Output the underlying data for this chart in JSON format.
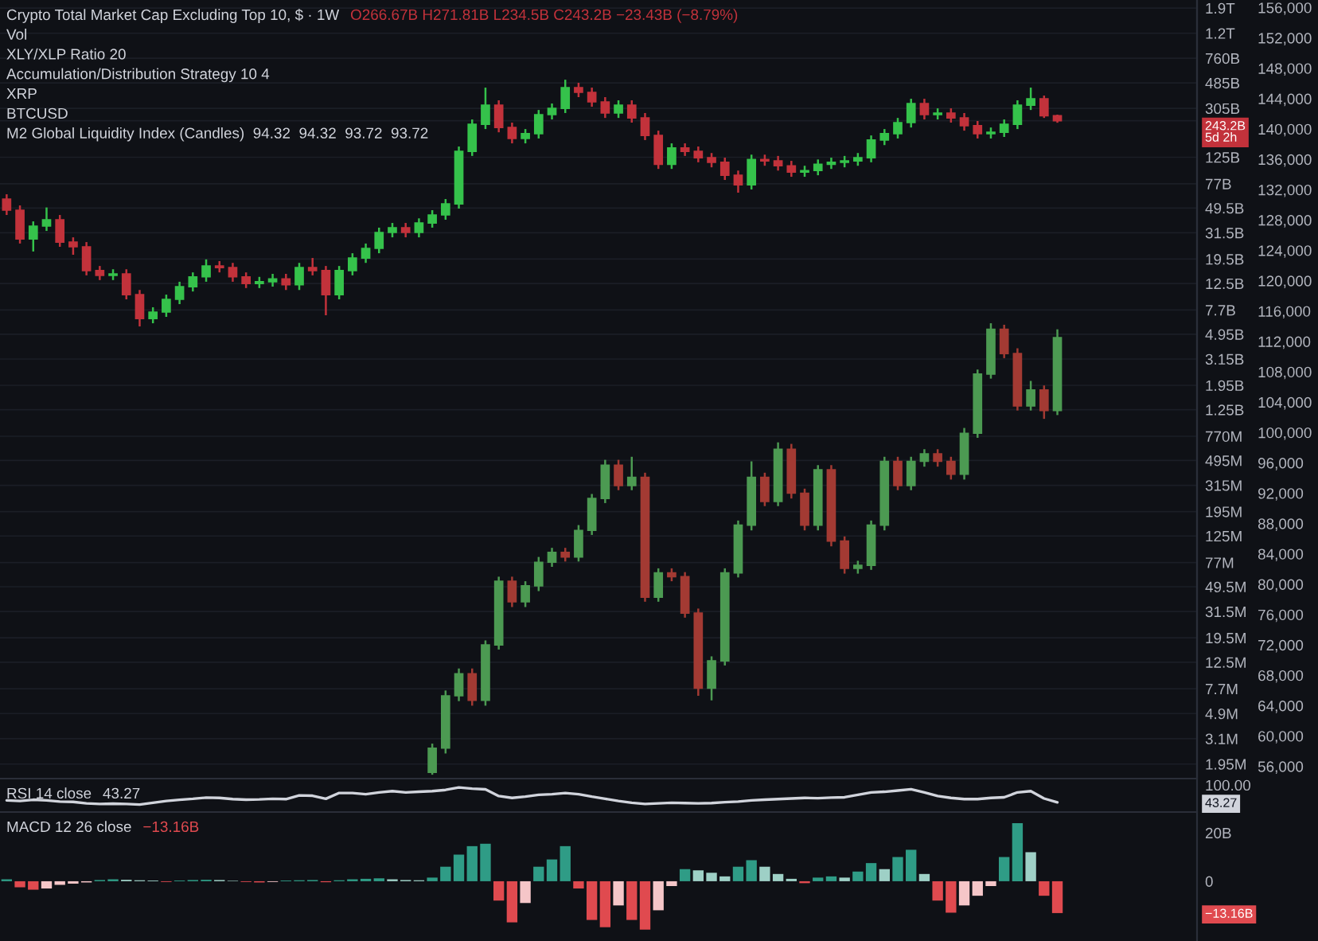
{
  "chart_data": [
    {
      "type": "candlestick",
      "title": "Crypto Total Market Cap Excluding Top 10, $ · 1W",
      "subtitle": "O266.67B H271.81B L234.5B C243.2B −23.43B (−8.79%)",
      "annotations": [
        "Vol",
        "XLY/XLP Ratio 20",
        "Accumulation/Distribution Strategy 10 4",
        "XRP",
        "BTCUSD",
        "M2 Global Liquidity Index (Candles)  94.32  94.32  93.72  93.72"
      ],
      "categories": [
        null,
        null,
        null,
        null,
        null,
        null,
        null,
        null,
        null,
        null,
        null,
        null,
        null,
        null,
        null,
        null,
        null,
        null,
        null,
        null,
        null,
        null,
        null,
        null,
        null,
        null,
        null,
        null,
        null,
        null,
        null,
        null,
        null,
        null,
        null,
        null,
        null,
        null,
        null,
        null,
        null,
        null,
        null,
        null,
        null,
        null,
        null,
        null,
        null,
        null,
        null,
        null,
        null,
        null,
        null,
        null,
        null,
        null,
        null,
        null,
        null,
        null,
        null,
        null,
        null,
        null,
        null,
        null,
        null,
        null,
        null,
        null,
        null,
        null,
        null,
        null,
        null,
        null,
        null,
        null,
        null,
        null,
        null,
        null,
        null,
        null,
        null,
        null,
        null,
        null
      ],
      "log": "y",
      "ylim": [
        1540000,
        2200000000000
      ],
      "yticks": [
        {
          "value": 1900000000000.0,
          "label": "1.9T"
        },
        {
          "value": 1200000000000.0,
          "label": "1.2T"
        },
        {
          "value": 760000000000.0,
          "label": "760B"
        },
        {
          "value": 485000000000.0,
          "label": "485B"
        },
        {
          "value": 305000000000.0,
          "label": "305B"
        },
        {
          "value": 243200000000.0,
          "label": "243.2B\n5d 2h"
        },
        {
          "value": 125000000000.0,
          "label": "125B"
        },
        {
          "value": 77000000000.0,
          "label": "77B"
        },
        {
          "value": 49500000000.0,
          "label": "49.5B"
        },
        {
          "value": 31500000000.0,
          "label": "31.5B"
        },
        {
          "value": 19500000000.0,
          "label": "19.5B"
        },
        {
          "value": 12500000000.0,
          "label": "12.5B"
        },
        {
          "value": 7700000000.0,
          "label": "7.7B"
        },
        {
          "value": 4950000000.0,
          "label": "4.95B"
        },
        {
          "value": 3150000000.0,
          "label": "3.15B"
        },
        {
          "value": 1950000000.0,
          "label": "1.95B"
        },
        {
          "value": 1250000000.0,
          "label": "1.25B"
        },
        {
          "value": 770000000.0,
          "label": "770M"
        },
        {
          "value": 495000000.0,
          "label": "495M"
        },
        {
          "value": 315000000.0,
          "label": "315M"
        },
        {
          "value": 195000000.0,
          "label": "195M"
        },
        {
          "value": 125000000.0,
          "label": "125M"
        },
        {
          "value": 77000000.0,
          "label": "77M"
        },
        {
          "value": 49500000.0,
          "label": "49.5M"
        },
        {
          "value": 31500000.0,
          "label": "31.5M"
        },
        {
          "value": 19500000.0,
          "label": "19.5M"
        },
        {
          "value": 12500000.0,
          "label": "12.5M"
        },
        {
          "value": 7700000.0,
          "label": "7.7M"
        },
        {
          "value": 4900000.0,
          "label": "4.9M"
        },
        {
          "value": 3100000.0,
          "label": "3.1M"
        },
        {
          "value": 1950000.0,
          "label": "1.95M"
        }
      ],
      "y2lim": [
        54600,
        157000
      ],
      "y2ticks": [
        {
          "value": 156000,
          "label": "156,000"
        },
        {
          "value": 152000,
          "label": "152,000"
        },
        {
          "value": 148000,
          "label": "148,000"
        },
        {
          "value": 144000,
          "label": "144,000"
        },
        {
          "value": 140000,
          "label": "140,000"
        },
        {
          "value": 136000,
          "label": "136,000"
        },
        {
          "value": 132000,
          "label": "132,000"
        },
        {
          "value": 128000,
          "label": "128,000"
        },
        {
          "value": 124000,
          "label": "124,000"
        },
        {
          "value": 120000,
          "label": "120,000"
        },
        {
          "value": 116000,
          "label": "116,000"
        },
        {
          "value": 112000,
          "label": "112,000"
        },
        {
          "value": 108000,
          "label": "108,000"
        },
        {
          "value": 104000,
          "label": "104,000"
        },
        {
          "value": 100000,
          "label": "100,000"
        },
        {
          "value": 96000,
          "label": "96,000"
        },
        {
          "value": 92000,
          "label": "92,000"
        },
        {
          "value": 88000,
          "label": "88,000"
        },
        {
          "value": 84000,
          "label": "84,000"
        },
        {
          "value": 80000,
          "label": "80,000"
        },
        {
          "value": 76000,
          "label": "76,000"
        },
        {
          "value": 72000,
          "label": "72,000"
        },
        {
          "value": 68000,
          "label": "68,000"
        },
        {
          "value": 64000,
          "label": "64,000"
        },
        {
          "value": 60000,
          "label": "60,000"
        },
        {
          "value": 56000,
          "label": "56,000"
        }
      ],
      "grid": "y",
      "series": [
        {
          "ohlc": [
            [
              58300000000.0,
              63600000000.0,
              43600000000.0,
              47600000000.0
            ],
            [
              47600000000.0,
              51900000000.0,
              25900000000.0,
              28200000000.0
            ],
            [
              28200000000.0,
              38800000000.0,
              22400000000.0,
              35600000000.0
            ],
            [
              35600000000.0,
              50000000000.0,
              32600000000.0,
              40000000000.0
            ],
            [
              40000000000.0,
              43600000000.0,
              24400000000.0,
              26600000000.0
            ],
            [
              26600000000.0,
              29000000000.0,
              21100000000.0,
              24400000000.0
            ],
            [
              24400000000.0,
              26600000000.0,
              14500000000.0,
              15800000000.0
            ],
            [
              15800000000.0,
              17200000000.0,
              13300000000.0,
              14500000000.0
            ],
            [
              14500000000.0,
              16200000000.0,
              13300000000.0,
              14900000000.0
            ],
            [
              14900000000.0,
              16200000000.0,
              9360000000.0,
              10200000000.0
            ],
            [
              10200000000.0,
              11100000000.0,
              5710000000.0,
              6600000000.0
            ],
            [
              6600000000.0,
              8100000000.0,
              6050000000.0,
              7420000000.0
            ],
            [
              7420000000.0,
              10200000000.0,
              6800000000.0,
              9360000000.0
            ],
            [
              9360000000.0,
              12900000000.0,
              8580000000.0,
              11800000000.0
            ],
            [
              11800000000.0,
              15300000000.0,
              10800000000.0,
              14100000000.0
            ],
            [
              14100000000.0,
              19400000000.0,
              12900000000.0,
              17200000000.0
            ],
            [
              17200000000.0,
              18800000000.0,
              15300000000.0,
              16700000000.0
            ],
            [
              16700000000.0,
              18200000000.0,
              12900000000.0,
              14100000000.0
            ],
            [
              14100000000.0,
              15300000000.0,
              11500000000.0,
              12500000000.0
            ],
            [
              12500000000.0,
              14100000000.0,
              11500000000.0,
              12900000000.0
            ],
            [
              12900000000.0,
              14900000000.0,
              11800000000.0,
              13600000000.0
            ],
            [
              13600000000.0,
              14900000000.0,
              11100000000.0,
              12200000000.0
            ],
            [
              12200000000.0,
              18200000000.0,
              11100000000.0,
              16700000000.0
            ],
            [
              16700000000.0,
              19900000000.0,
              14500000000.0,
              15800000000.0
            ],
            [
              15800000000.0,
              17200000000.0,
              7000000000.0,
              10200000000.0
            ],
            [
              10200000000.0,
              17200000000.0,
              9360000000.0,
              15800000000.0
            ],
            [
              15800000000.0,
              21700000000.0,
              14500000000.0,
              19900000000.0
            ],
            [
              19900000000.0,
              25900000000.0,
              18200000000.0,
              23700000000.0
            ],
            [
              23700000000.0,
              34600000000.0,
              21700000000.0,
              31700000000.0
            ],
            [
              31700000000.0,
              37700000000.0,
              29000000000.0,
              34600000000.0
            ],
            [
              34600000000.0,
              37700000000.0,
              29000000000.0,
              31700000000.0
            ],
            [
              31700000000.0,
              41000000000.0,
              29000000000.0,
              37700000000.0
            ],
            [
              37700000000.0,
              47600000000.0,
              34600000000.0,
              43600000000.0
            ],
            [
              43600000000.0,
              58300000000.0,
              40000000000.0,
              53400000000.0
            ],
            [
              53400000000.0,
              152000000000.0,
              49000000000.0,
              139000000000.0
            ],
            [
              139000000000.0,
              249000000000.0,
              128000000000.0,
              228000000000.0
            ],
            [
              228000000000.0,
              445000000000.0,
              209000000000.0,
              323000000000.0
            ],
            [
              323000000000.0,
              353000000000.0,
              197000000000.0,
              215000000000.0
            ],
            [
              215000000000.0,
              235000000000.0,
              161000000000.0,
              176000000000.0
            ],
            [
              176000000000.0,
              209000000000.0,
              161000000000.0,
              192000000000.0
            ],
            [
              192000000000.0,
              296000000000.0,
              176000000000.0,
              272000000000.0
            ],
            [
              272000000000.0,
              333000000000.0,
              249000000000.0,
              305000000000.0
            ],
            [
              305000000000.0,
              514000000000.0,
              280000000000.0,
              445000000000.0
            ],
            [
              445000000000.0,
              486000000000.0,
              374000000000.0,
              408000000000.0
            ],
            [
              408000000000.0,
              445000000000.0,
              314000000000.0,
              343000000000.0
            ],
            [
              343000000000.0,
              374000000000.0,
              256000000000.0,
              280000000000.0
            ],
            [
              280000000000.0,
              353000000000.0,
              256000000000.0,
              323000000000.0
            ],
            [
              323000000000.0,
              353000000000.0,
              235000000000.0,
              256000000000.0
            ],
            [
              256000000000.0,
              280000000000.0,
              171000000000.0,
              186000000000.0
            ],
            [
              186000000000.0,
              203000000000.0,
              101000000000.0,
              110000000000.0
            ],
            [
              110000000000.0,
              161000000000.0,
              101000000000.0,
              148000000000.0
            ],
            [
              148000000000.0,
              161000000000.0,
              128000000000.0,
              139000000000.0
            ],
            [
              139000000000.0,
              152000000000.0,
              114000000000.0,
              124000000000.0
            ],
            [
              124000000000.0,
              135000000000.0,
              104000000000.0,
              114000000000.0
            ],
            [
              114000000000.0,
              124000000000.0,
              82600000000.0,
              90000000000.0
            ],
            [
              90000000000.0,
              98000000000.0,
              65500000000.0,
              75700000000.0
            ],
            [
              75700000000.0,
              131000000000.0,
              69400000000.0,
              120000000000.0
            ],
            [
              120000000000.0,
              131000000000.0,
              107000000000.0,
              117000000000.0
            ],
            [
              117000000000.0,
              128000000000.0,
              98000000000.0,
              107000000000.0
            ],
            [
              107000000000.0,
              117000000000.0,
              87500000000.0,
              95500000000.0
            ],
            [
              95500000000.0,
              107000000000.0,
              87500000000.0,
              98000000000.0
            ],
            [
              98000000000.0,
              120000000000.0,
              90000000000.0,
              110000000000.0
            ],
            [
              110000000000.0,
              124000000000.0,
              101000000000.0,
              114000000000.0
            ],
            [
              114000000000.0,
              128000000000.0,
              104000000000.0,
              117000000000.0
            ],
            [
              117000000000.0,
              135000000000.0,
              107000000000.0,
              124000000000.0
            ],
            [
              124000000000.0,
              186000000000.0,
              114000000000.0,
              171000000000.0
            ],
            [
              171000000000.0,
              209000000000.0,
              156000000000.0,
              192000000000.0
            ],
            [
              192000000000.0,
              256000000000.0,
              176000000000.0,
              235000000000.0
            ],
            [
              235000000000.0,
              363000000000.0,
              215000000000.0,
              333000000000.0
            ],
            [
              333000000000.0,
              363000000000.0,
              249000000000.0,
              272000000000.0
            ],
            [
              272000000000.0,
              305000000000.0,
              249000000000.0,
              280000000000.0
            ],
            [
              280000000000.0,
              305000000000.0,
              235000000000.0,
              256000000000.0
            ],
            [
              256000000000.0,
              280000000000.0,
              203000000000.0,
              222000000000.0
            ],
            [
              222000000000.0,
              242000000000.0,
              176000000000.0,
              192000000000.0
            ],
            [
              192000000000.0,
              215000000000.0,
              176000000000.0,
              197000000000.0
            ],
            [
              197000000000.0,
              249000000000.0,
              181000000000.0,
              228000000000.0
            ],
            [
              228000000000.0,
              353000000000.0,
              209000000000.0,
              323000000000.0
            ],
            [
              323000000000.0,
              445000000000.0,
              296000000000.0,
              363000000000.0
            ],
            [
              363000000000.0,
              385000000000.0,
              256000000000.0,
              266670000000.0
            ],
            [
              266670000000.0,
              271810000000.0,
              234500000000.0,
              243200000000.0
            ],
            null,
            null,
            null,
            null,
            null,
            null,
            null,
            null,
            null,
            null
          ],
          "colors": [
            "#c2323b",
            "#c2323b",
            "#35c24b",
            "#35c24b",
            "#c2323b",
            "#c2323b",
            "#c2323b",
            "#c2323b",
            "#35c24b",
            "#c2323b",
            "#c2323b",
            "#35c24b",
            "#35c24b",
            "#35c24b",
            "#35c24b",
            "#35c24b",
            "#c2323b",
            "#c2323b",
            "#c2323b",
            "#35c24b",
            "#35c24b",
            "#c2323b",
            "#35c24b",
            "#c2323b",
            "#c2323b",
            "#35c24b",
            "#35c24b",
            "#35c24b",
            "#35c24b",
            "#35c24b",
            "#c2323b",
            "#35c24b",
            "#35c24b",
            "#35c24b",
            "#35c24b",
            "#35c24b",
            "#35c24b",
            "#c2323b",
            "#c2323b",
            "#35c24b",
            "#35c24b",
            "#35c24b",
            "#35c24b",
            "#c2323b",
            "#c2323b",
            "#c2323b",
            "#35c24b",
            "#c2323b",
            "#c2323b",
            "#c2323b",
            "#35c24b",
            "#c2323b",
            "#c2323b",
            "#c2323b",
            "#c2323b",
            "#c2323b",
            "#35c24b",
            "#c2323b",
            "#c2323b",
            "#c2323b",
            "#35c24b",
            "#35c24b",
            "#35c24b",
            "#35c24b",
            "#35c24b",
            "#35c24b",
            "#35c24b",
            "#35c24b",
            "#35c24b",
            "#c2323b",
            "#35c24b",
            "#c2323b",
            "#c2323b",
            "#c2323b",
            "#35c24b",
            "#35c24b",
            "#35c24b",
            "#35c24b",
            "#c2323b",
            "#c2323b",
            null,
            null,
            null,
            null,
            null,
            null,
            null,
            null,
            null,
            null
          ]
        },
        {
          "axis": "y2",
          "ohlc": [
            null,
            null,
            null,
            null,
            null,
            null,
            null,
            null,
            null,
            null,
            null,
            null,
            null,
            null,
            null,
            null,
            null,
            null,
            null,
            null,
            null,
            null,
            null,
            null,
            null,
            null,
            null,
            null,
            null,
            null,
            null,
            null,
            [
              55200,
              59000,
              54900,
              58400
            ],
            [
              58400,
              66000,
              57700,
              65300
            ],
            [
              65300,
              68900,
              64600,
              68200
            ],
            [
              68200,
              68900,
              64000,
              64700
            ],
            [
              64700,
              72600,
              64000,
              72000
            ],
            [
              72000,
              81000,
              71400,
              80400
            ],
            [
              80400,
              81000,
              77000,
              77700
            ],
            [
              77700,
              80400,
              77000,
              79800
            ],
            [
              79800,
              83600,
              79100,
              82900
            ],
            [
              82900,
              84800,
              82300,
              84200
            ],
            [
              84200,
              84800,
              83000,
              83600
            ],
            [
              83600,
              87800,
              83000,
              87100
            ],
            [
              87100,
              91900,
              86500,
              91300
            ],
            [
              91300,
              96400,
              90700,
              95700
            ],
            [
              95700,
              96400,
              92400,
              93000
            ],
            [
              93000,
              96800,
              92400,
              94100
            ],
            [
              94100,
              94700,
              77700,
              78300
            ],
            [
              78300,
              82100,
              77700,
              81500
            ],
            [
              81500,
              82100,
              80400,
              81000
            ],
            [
              81000,
              81600,
              75600,
              76200
            ],
            [
              76200,
              76800,
              65300,
              66300
            ],
            [
              66300,
              70500,
              64700,
              69900
            ],
            [
              69900,
              82100,
              69300,
              81500
            ],
            [
              81500,
              88400,
              80900,
              87800
            ],
            [
              87800,
              96200,
              87100,
              94100
            ],
            [
              94100,
              94700,
              90300,
              90900
            ],
            [
              90900,
              98700,
              90300,
              97800
            ],
            [
              97800,
              98500,
              91300,
              92000
            ],
            [
              92000,
              92600,
              87100,
              87800
            ],
            [
              87800,
              95700,
              87100,
              95100
            ],
            [
              95100,
              95700,
              85000,
              85700
            ],
            [
              85700,
              86300,
              81400,
              82100
            ],
            [
              82100,
              83100,
              81400,
              82500
            ],
            [
              82500,
              88400,
              81900,
              87800
            ],
            [
              87800,
              96800,
              87100,
              96200
            ],
            [
              96200,
              96800,
              92400,
              93000
            ],
            [
              93000,
              96800,
              92400,
              96200
            ],
            [
              96200,
              97800,
              95500,
              97200
            ],
            [
              97200,
              97800,
              95500,
              96200
            ],
            [
              96200,
              96800,
              93800,
              94500
            ],
            [
              94500,
              100600,
              93800,
              99900
            ],
            [
              99900,
              108300,
              99300,
              107700
            ],
            [
              107700,
              114400,
              107100,
              113600
            ],
            [
              113600,
              114200,
              109800,
              110400
            ],
            [
              110400,
              111100,
              102900,
              103500
            ],
            [
              103500,
              106800,
              102900,
              105600
            ],
            [
              105600,
              106200,
              101800,
              102900
            ],
            [
              102900,
              113600,
              102300,
              112500
            ],
            null,
            null,
            null,
            null,
            null,
            null,
            null,
            null,
            null,
            null
          ],
          "colors": [
            null,
            null,
            null,
            null,
            null,
            null,
            null,
            null,
            null,
            null,
            null,
            null,
            null,
            null,
            null,
            null,
            null,
            null,
            null,
            null,
            null,
            null,
            null,
            null,
            null,
            null,
            null,
            null,
            null,
            null,
            null,
            null,
            "#4c9a52",
            "#4c9a52",
            "#4c9a52",
            "#a33a33",
            "#4c9a52",
            "#4c9a52",
            "#a33a33",
            "#4c9a52",
            "#4c9a52",
            "#4c9a52",
            "#a33a33",
            "#4c9a52",
            "#4c9a52",
            "#4c9a52",
            "#a33a33",
            "#4c9a52",
            "#a33a33",
            "#4c9a52",
            "#a33a33",
            "#a33a33",
            "#a33a33",
            "#4c9a52",
            "#4c9a52",
            "#4c9a52",
            "#4c9a52",
            "#a33a33",
            "#4c9a52",
            "#a33a33",
            "#a33a33",
            "#4c9a52",
            "#a33a33",
            "#a33a33",
            "#4c9a52",
            "#4c9a52",
            "#4c9a52",
            "#a33a33",
            "#4c9a52",
            "#4c9a52",
            "#a33a33",
            "#a33a33",
            "#4c9a52",
            "#4c9a52",
            "#4c9a52",
            "#a33a33",
            "#a33a33",
            "#4c9a52",
            "#a33a33",
            "#4c9a52",
            null,
            null,
            null,
            null,
            null,
            null,
            null,
            null,
            null,
            null
          ]
        }
      ]
    },
    {
      "type": "line",
      "title": "RSI 14 close",
      "subtitle": "43.27",
      "categories": [
        null,
        null,
        null,
        null,
        null,
        null,
        null,
        null,
        null,
        null,
        null,
        null,
        null,
        null,
        null,
        null,
        null,
        null,
        null,
        null,
        null,
        null,
        null,
        null,
        null,
        null,
        null,
        null,
        null,
        null,
        null,
        null,
        null,
        null,
        null,
        null,
        null,
        null,
        null,
        null,
        null,
        null,
        null,
        null,
        null,
        null,
        null,
        null,
        null,
        null,
        null,
        null,
        null,
        null,
        null,
        null,
        null,
        null,
        null,
        null,
        null,
        null,
        null,
        null,
        null,
        null,
        null,
        null,
        null,
        null,
        null,
        null,
        null,
        null,
        null,
        null,
        null,
        null,
        null,
        null,
        null,
        null,
        null,
        null,
        null,
        null,
        null,
        null,
        null,
        null
      ],
      "values": [
        50,
        48,
        52,
        50,
        46,
        45,
        40,
        38,
        39,
        38,
        36,
        42,
        48,
        52,
        55,
        59,
        58,
        54,
        52,
        53,
        55,
        54,
        66,
        65,
        55,
        74,
        74,
        70,
        76,
        80,
        76,
        78,
        80,
        84,
        92,
        88,
        86,
        64,
        58,
        62,
        68,
        70,
        74,
        70,
        62,
        55,
        48,
        42,
        38,
        40,
        42,
        41,
        40,
        41,
        44,
        46,
        50,
        52,
        54,
        56,
        58,
        57,
        59,
        60,
        68,
        76,
        78,
        82,
        86,
        76,
        64,
        58,
        54,
        54,
        58,
        60,
        76,
        80,
        56,
        43.27,
        null,
        null,
        null,
        null,
        null,
        null,
        null,
        null,
        null,
        null
      ],
      "color": "#d1d4dc",
      "ylim": [
        17,
        121
      ],
      "yticks": [
        {
          "value": 43.27,
          "label": "43.27"
        },
        {
          "value": 100,
          "label": "100.00"
        }
      ]
    },
    {
      "type": "bar",
      "title": "MACD 12 26 close",
      "subtitle": "−13.16B",
      "categories": [
        null,
        null,
        null,
        null,
        null,
        null,
        null,
        null,
        null,
        null,
        null,
        null,
        null,
        null,
        null,
        null,
        null,
        null,
        null,
        null,
        null,
        null,
        null,
        null,
        null,
        null,
        null,
        null,
        null,
        null,
        null,
        null,
        null,
        null,
        null,
        null,
        null,
        null,
        null,
        null,
        null,
        null,
        null,
        null,
        null,
        null,
        null,
        null,
        null,
        null,
        null,
        null,
        null,
        null,
        null,
        null,
        null,
        null,
        null,
        null,
        null,
        null,
        null,
        null,
        null,
        null,
        null,
        null,
        null,
        null,
        null,
        null,
        null,
        null,
        null,
        null,
        null,
        null,
        null,
        null,
        null,
        null,
        null,
        null,
        null,
        null,
        null,
        null,
        null,
        null
      ],
      "values": [
        800000000.0,
        -2500000000.0,
        -3500000000.0,
        -3000000000.0,
        -1500000000.0,
        -1000000000.0,
        -500000000.0,
        500000000.0,
        800000000.0,
        600000000.0,
        400000000.0,
        300000000.0,
        -300000000.0,
        300000000.0,
        500000000.0,
        600000000.0,
        500000000.0,
        200000000.0,
        -300000000.0,
        -500000000.0,
        -300000000.0,
        300000000.0,
        400000000.0,
        500000000.0,
        -400000000.0,
        400000000.0,
        800000000.0,
        1000000000.0,
        1200000000.0,
        800000000.0,
        500000000.0,
        400000000.0,
        1500000000.0,
        6000000000.0,
        11000000000.0,
        14500000000.0,
        15500000000.0,
        -8000000000.0,
        -17000000000.0,
        -9000000000.0,
        6000000000.0,
        9000000000.0,
        14500000000.0,
        -3000000000.0,
        -16000000000.0,
        -19000000000.0,
        -10000000000.0,
        -16000000000.0,
        -20000000000.0,
        -12000000000.0,
        -2000000000.0,
        5000000000.0,
        4500000000.0,
        3500000000.0,
        2000000000.0,
        6000000000.0,
        8700000000.0,
        6000000000.0,
        3000000000.0,
        1000000000.0,
        -800000000.0,
        1500000000.0,
        2000000000.0,
        1500000000.0,
        4000000000.0,
        7500000000.0,
        5000000000.0,
        10000000000.0,
        13000000000.0,
        3000000000.0,
        -8000000000.0,
        -13000000000.0,
        -10000000000.0,
        -6000000000.0,
        -2000000000.0,
        10000000000.0,
        24000000000.0,
        12000000000.0,
        -6000000000.0,
        -13160000000.0,
        null,
        null,
        null,
        null,
        null,
        null,
        null,
        null,
        null,
        null
      ],
      "colors": [
        "#2f9c86",
        "#e04a4f",
        "#e04a4f",
        "#f5c6c8",
        "#f5c6c8",
        "#f5c6c8",
        "#f5c6c8",
        "#2f9c86",
        "#2f9c86",
        "#9ed0c6",
        "#9ed0c6",
        "#9ed0c6",
        "#e04a4f",
        "#2f9c86",
        "#2f9c86",
        "#2f9c86",
        "#9ed0c6",
        "#9ed0c6",
        "#e04a4f",
        "#e04a4f",
        "#f5c6c8",
        "#2f9c86",
        "#2f9c86",
        "#2f9c86",
        "#e04a4f",
        "#2f9c86",
        "#2f9c86",
        "#2f9c86",
        "#2f9c86",
        "#9ed0c6",
        "#9ed0c6",
        "#9ed0c6",
        "#2f9c86",
        "#2f9c86",
        "#2f9c86",
        "#2f9c86",
        "#2f9c86",
        "#e04a4f",
        "#e04a4f",
        "#f5c6c8",
        "#2f9c86",
        "#2f9c86",
        "#2f9c86",
        "#e04a4f",
        "#e04a4f",
        "#e04a4f",
        "#f5c6c8",
        "#e04a4f",
        "#e04a4f",
        "#f5c6c8",
        "#f5c6c8",
        "#2f9c86",
        "#9ed0c6",
        "#9ed0c6",
        "#9ed0c6",
        "#2f9c86",
        "#2f9c86",
        "#9ed0c6",
        "#9ed0c6",
        "#9ed0c6",
        "#e04a4f",
        "#2f9c86",
        "#2f9c86",
        "#9ed0c6",
        "#2f9c86",
        "#2f9c86",
        "#9ed0c6",
        "#2f9c86",
        "#2f9c86",
        "#9ed0c6",
        "#e04a4f",
        "#e04a4f",
        "#f5c6c8",
        "#f5c6c8",
        "#f5c6c8",
        "#2f9c86",
        "#2f9c86",
        "#9ed0c6",
        "#e04a4f",
        "#e04a4f",
        null,
        null,
        null,
        null,
        null,
        null,
        null,
        null,
        null,
        null
      ],
      "ylim": [
        -24700000000,
        28600000000
      ],
      "yticks": [
        {
          "value": 20000000000,
          "label": "20B"
        },
        0,
        {
          "value": -13160000000,
          "label": "−13.16B"
        }
      ]
    }
  ]
}
